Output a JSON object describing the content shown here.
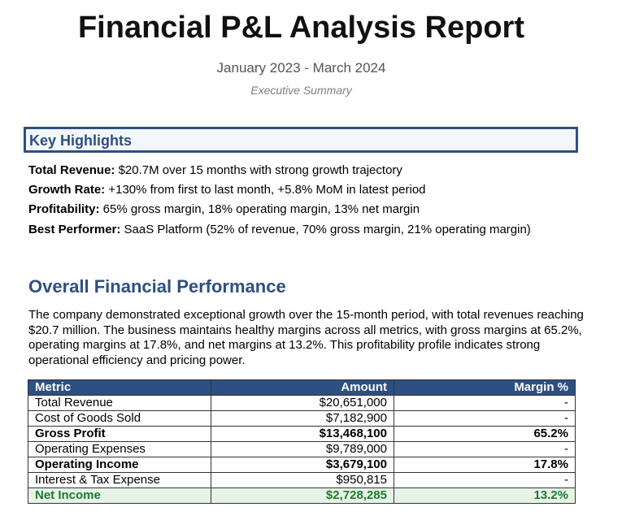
{
  "header": {
    "title": "Financial P&L Analysis Report",
    "period": "January 2023 - March 2024",
    "tagline": "Executive Summary"
  },
  "highlights": {
    "title": "Key Highlights",
    "items": [
      {
        "label": "Total Revenue:",
        "text": " $20.7M over 15 months with strong growth trajectory"
      },
      {
        "label": "Growth Rate:",
        "text": " +130% from first to last month, +5.8% MoM in latest period"
      },
      {
        "label": "Profitability:",
        "text": " 65% gross margin, 18% operating margin, 13% net margin"
      },
      {
        "label": "Best Performer:",
        "text": " SaaS Platform (52% of revenue, 70% gross margin, 21% operating margin)"
      }
    ]
  },
  "performance": {
    "title": "Overall Financial Performance",
    "paragraph": "The company demonstrated exceptional growth over the 15-month period, with total revenues reaching $20.7 million. The business maintains healthy margins across all metrics, with gross margins at 65.2%, operating margins at 17.8%, and net margins at 13.2%. This profitability profile indicates strong operational efficiency and pricing power."
  },
  "table": {
    "headers": {
      "metric": "Metric",
      "amount": "Amount",
      "margin": "Margin %"
    },
    "rows": [
      {
        "metric": "Total Revenue",
        "amount": "$20,651,000",
        "margin": "-"
      },
      {
        "metric": "Cost of Goods Sold",
        "amount": "$7,182,900",
        "margin": "-"
      },
      {
        "metric": "Gross Profit",
        "amount": "$13,468,100",
        "margin": "65.2%"
      },
      {
        "metric": "Operating Expenses",
        "amount": "$9,789,000",
        "margin": "-"
      },
      {
        "metric": "Operating Income",
        "amount": "$3,679,100",
        "margin": "17.8%"
      },
      {
        "metric": "Interest & Tax Expense",
        "amount": "$950,815",
        "margin": "-"
      },
      {
        "metric": "Net Income",
        "amount": "$2,728,285",
        "margin": "13.2%"
      }
    ]
  },
  "colors": {
    "accent": "#2e4f82",
    "positive": "#1e7a2e",
    "positive_bg": "#e6f4e7"
  }
}
